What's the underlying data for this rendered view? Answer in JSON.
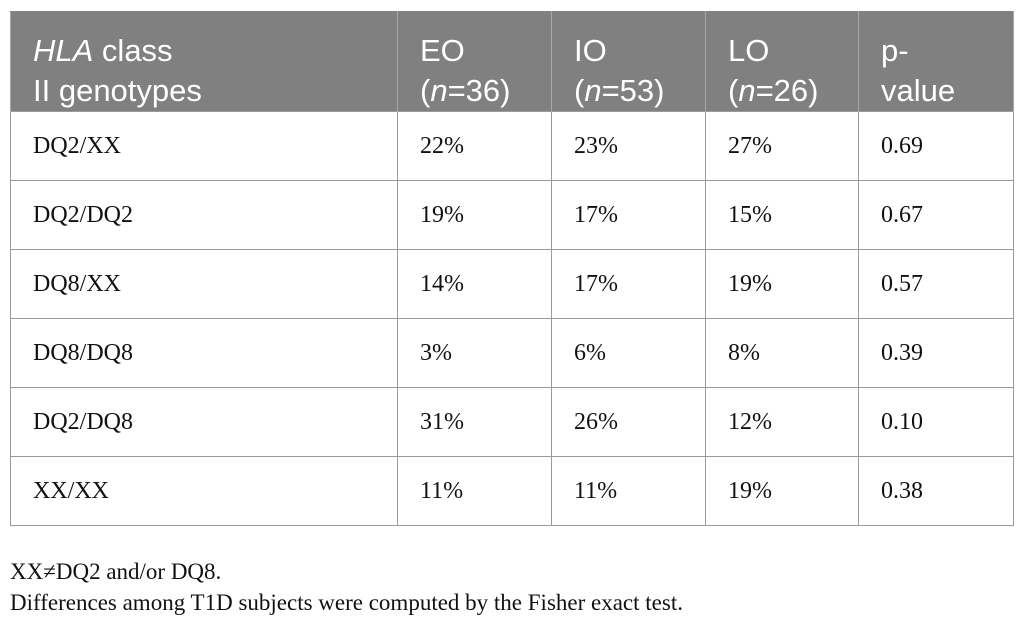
{
  "table": {
    "headers": [
      {
        "italic": "HLA",
        "rest": " class",
        "line2_pre": "II genotypes",
        "line2_italic": "",
        "line2_post": ""
      },
      {
        "italic": "",
        "rest": "EO",
        "line2_pre": "(",
        "line2_italic": "n",
        "line2_post": "=36)"
      },
      {
        "italic": "",
        "rest": "IO",
        "line2_pre": "(",
        "line2_italic": "n",
        "line2_post": "=53)"
      },
      {
        "italic": "",
        "rest": "LO",
        "line2_pre": "(",
        "line2_italic": "n",
        "line2_post": "=26)"
      },
      {
        "italic": "",
        "rest": "p-",
        "line2_pre": "value",
        "line2_italic": "",
        "line2_post": ""
      }
    ],
    "rows": [
      [
        "DQ2/XX",
        "22%",
        "23%",
        "27%",
        "0.69"
      ],
      [
        "DQ2/DQ2",
        "19%",
        "17%",
        "15%",
        "0.67"
      ],
      [
        "DQ8/XX",
        "14%",
        "17%",
        "19%",
        "0.57"
      ],
      [
        "DQ8/DQ8",
        "3%",
        "6%",
        "8%",
        "0.39"
      ],
      [
        "DQ2/DQ8",
        "31%",
        "26%",
        "12%",
        "0.10"
      ],
      [
        "XX/XX",
        "11%",
        "11%",
        "19%",
        "0.38"
      ]
    ]
  },
  "footnotes": {
    "note1": "XX≠DQ2 and/or DQ8.",
    "note2": "Differences among T1D subjects were computed by the Fisher exact test."
  },
  "colors": {
    "header_bg": "#808080",
    "header_text": "#ffffff",
    "border": "#9a9a9a"
  }
}
